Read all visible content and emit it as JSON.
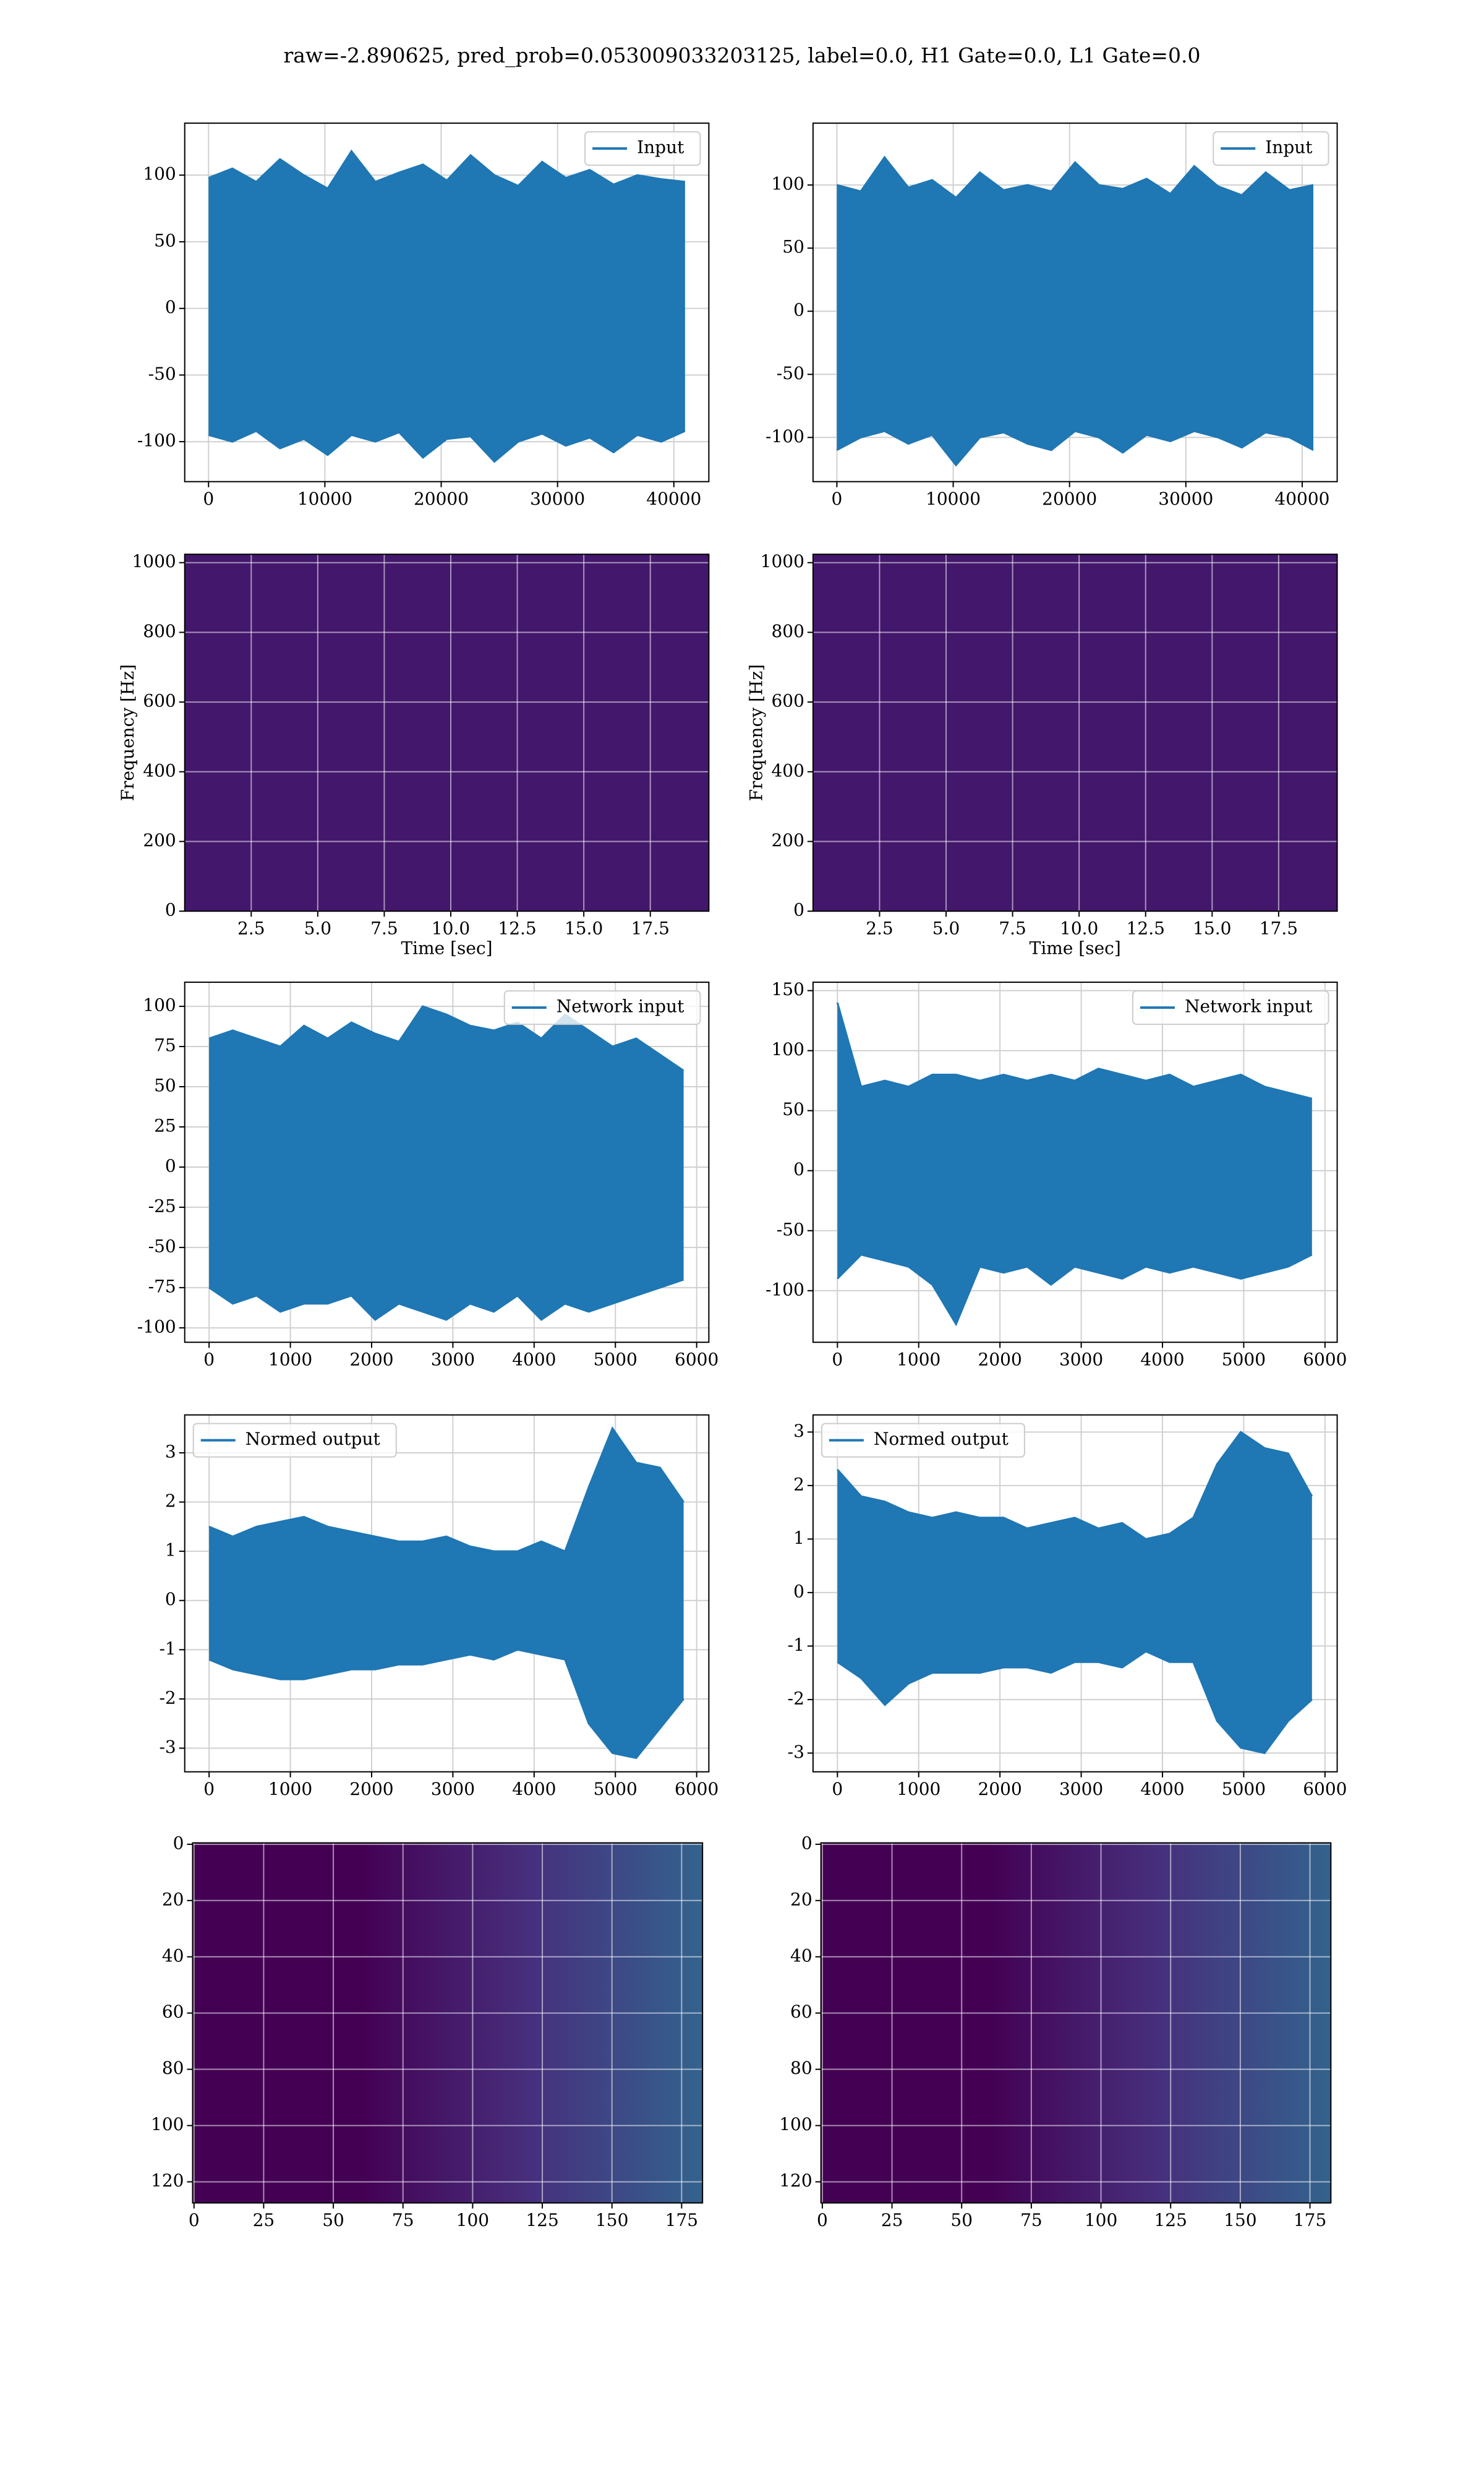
{
  "title": "raw=-2.890625, pred_prob=0.053009033203125, label=0.0, H1 Gate=0.0, L1 Gate=0.0",
  "chart_data": [
    {
      "type": "line",
      "legend": "upper right",
      "grid": true,
      "xlim": [
        -2048,
        43008
      ],
      "ylim": [
        -130,
        139
      ],
      "xticks": [
        0,
        10000,
        20000,
        30000,
        40000
      ],
      "yticks": [
        -100,
        -50,
        0,
        50,
        100
      ],
      "x": [
        0,
        2048,
        4096,
        6144,
        8192,
        10240,
        12288,
        14336,
        16384,
        18432,
        20480,
        22528,
        24576,
        26624,
        28672,
        30720,
        32768,
        34816,
        36864,
        38912,
        40960
      ],
      "series": [
        {
          "name": "Input",
          "color": "#1f77b4",
          "values": [
            98,
            105,
            95,
            112,
            100,
            90,
            118,
            95,
            102,
            108,
            96,
            115,
            100,
            92,
            110,
            98,
            104,
            93,
            100,
            97,
            95
          ],
          "low": [
            -95,
            -100,
            -92,
            -105,
            -98,
            -110,
            -95,
            -100,
            -93,
            -112,
            -98,
            -96,
            -115,
            -100,
            -94,
            -103,
            -97,
            -108,
            -95,
            -100,
            -92
          ]
        }
      ]
    },
    {
      "type": "line",
      "legend": "upper right",
      "grid": true,
      "xlim": [
        -2048,
        43008
      ],
      "ylim": [
        -135,
        149
      ],
      "xticks": [
        0,
        10000,
        20000,
        30000,
        40000
      ],
      "yticks": [
        -100,
        -50,
        0,
        50,
        100
      ],
      "x": [
        0,
        2048,
        4096,
        6144,
        8192,
        10240,
        12288,
        14336,
        16384,
        18432,
        20480,
        22528,
        24576,
        26624,
        28672,
        30720,
        32768,
        34816,
        36864,
        38912,
        40960
      ],
      "series": [
        {
          "name": "Input",
          "color": "#1f77b4",
          "values": [
            100,
            95,
            122,
            98,
            104,
            90,
            110,
            96,
            100,
            95,
            118,
            100,
            97,
            105,
            93,
            115,
            99,
            92,
            110,
            96,
            100
          ],
          "low": [
            -110,
            -100,
            -95,
            -105,
            -98,
            -122,
            -100,
            -96,
            -105,
            -110,
            -95,
            -100,
            -112,
            -98,
            -103,
            -95,
            -100,
            -108,
            -96,
            -100,
            -110
          ]
        }
      ]
    },
    {
      "type": "spectrogram",
      "grid": true,
      "color": "#43176c",
      "xlabel": "Time [sec]",
      "ylabel": "Frequency [Hz]",
      "xlim": [
        0,
        19.7
      ],
      "ylim": [
        0,
        1024
      ],
      "xticks": [
        2.5,
        {
          "value": 5,
          "label": "5.0"
        },
        7.5,
        {
          "value": 10,
          "label": "10.0"
        },
        12.5,
        {
          "value": 15,
          "label": "15.0"
        },
        17.5
      ],
      "yticks": [
        0,
        200,
        400,
        600,
        800,
        1000
      ]
    },
    {
      "type": "spectrogram",
      "grid": true,
      "color": "#43176c",
      "xlabel": "Time [sec]",
      "ylabel": "Frequency [Hz]",
      "xlim": [
        0,
        19.7
      ],
      "ylim": [
        0,
        1024
      ],
      "xticks": [
        2.5,
        {
          "value": 5,
          "label": "5.0"
        },
        7.5,
        {
          "value": 10,
          "label": "10.0"
        },
        12.5,
        {
          "value": 15,
          "label": "15.0"
        },
        17.5
      ],
      "yticks": [
        0,
        200,
        400,
        600,
        800,
        1000
      ]
    },
    {
      "type": "line",
      "legend": "upper right",
      "grid": true,
      "xlim": [
        -300,
        6150
      ],
      "ylim": [
        -109,
        115
      ],
      "xticks": [
        0,
        1000,
        2000,
        3000,
        4000,
        5000,
        6000
      ],
      "yticks": [
        -100,
        -75,
        -50,
        -25,
        0,
        25,
        50,
        75,
        100
      ],
      "x": [
        0,
        292,
        584,
        876,
        1168,
        1460,
        1752,
        2044,
        2336,
        2628,
        2920,
        3212,
        3504,
        3796,
        4088,
        4380,
        4672,
        4964,
        5256,
        5548,
        5840
      ],
      "series": [
        {
          "name": "Network input",
          "color": "#1f77b4",
          "values": [
            80,
            85,
            80,
            75,
            88,
            80,
            90,
            83,
            78,
            100,
            95,
            88,
            85,
            90,
            80,
            95,
            85,
            75,
            80,
            70,
            60
          ],
          "low": [
            -75,
            -85,
            -80,
            -90,
            -85,
            -85,
            -80,
            -95,
            -85,
            -90,
            -95,
            -85,
            -90,
            -80,
            -95,
            -85,
            -90,
            -85,
            -80,
            -75,
            -70
          ]
        }
      ]
    },
    {
      "type": "line",
      "legend": "upper right",
      "grid": true,
      "xlim": [
        -300,
        6150
      ],
      "ylim": [
        -143,
        157
      ],
      "xticks": [
        0,
        1000,
        2000,
        3000,
        4000,
        5000,
        6000
      ],
      "yticks": [
        -100,
        -50,
        0,
        50,
        100,
        150
      ],
      "x": [
        0,
        292,
        584,
        876,
        1168,
        1460,
        1752,
        2044,
        2336,
        2628,
        2920,
        3212,
        3504,
        3796,
        4088,
        4380,
        4672,
        4964,
        5256,
        5548,
        5840
      ],
      "series": [
        {
          "name": "Network input",
          "color": "#1f77b4",
          "values": [
            140,
            70,
            75,
            70,
            80,
            80,
            75,
            80,
            75,
            80,
            75,
            85,
            80,
            75,
            80,
            70,
            75,
            80,
            70,
            65,
            60
          ],
          "low": [
            -90,
            -70,
            -75,
            -80,
            -95,
            -128,
            -80,
            -85,
            -80,
            -95,
            -80,
            -85,
            -90,
            -80,
            -85,
            -80,
            -85,
            -90,
            -85,
            -80,
            -70
          ]
        }
      ]
    },
    {
      "type": "line",
      "legend": "upper left",
      "grid": true,
      "xlim": [
        -300,
        6150
      ],
      "ylim": [
        -3.48,
        3.77
      ],
      "xticks": [
        0,
        1000,
        2000,
        3000,
        4000,
        5000,
        6000
      ],
      "yticks": [
        -3,
        -2,
        -1,
        0,
        1,
        2,
        3
      ],
      "x": [
        0,
        292,
        584,
        876,
        1168,
        1460,
        1752,
        2044,
        2336,
        2628,
        2920,
        3212,
        3504,
        3796,
        4088,
        4380,
        4672,
        4964,
        5256,
        5548,
        5840
      ],
      "series": [
        {
          "name": "Normed output",
          "color": "#1f77b4",
          "values": [
            1.5,
            1.3,
            1.5,
            1.6,
            1.7,
            1.5,
            1.4,
            1.3,
            1.2,
            1.2,
            1.3,
            1.1,
            1.0,
            1.0,
            1.2,
            1.0,
            2.3,
            3.5,
            2.8,
            2.7,
            2.0
          ],
          "low": [
            -1.2,
            -1.4,
            -1.5,
            -1.6,
            -1.6,
            -1.5,
            -1.4,
            -1.4,
            -1.3,
            -1.3,
            -1.2,
            -1.1,
            -1.2,
            -1.0,
            -1.1,
            -1.2,
            -2.5,
            -3.1,
            -3.2,
            -2.6,
            -2.0
          ]
        }
      ]
    },
    {
      "type": "line",
      "legend": "upper left",
      "grid": true,
      "xlim": [
        -300,
        6150
      ],
      "ylim": [
        -3.35,
        3.32
      ],
      "xticks": [
        0,
        1000,
        2000,
        3000,
        4000,
        5000,
        6000
      ],
      "yticks": [
        -3,
        -2,
        -1,
        0,
        1,
        2,
        3
      ],
      "x": [
        0,
        292,
        584,
        876,
        1168,
        1460,
        1752,
        2044,
        2336,
        2628,
        2920,
        3212,
        3504,
        3796,
        4088,
        4380,
        4672,
        4964,
        5256,
        5548,
        5840
      ],
      "series": [
        {
          "name": "Normed output",
          "color": "#1f77b4",
          "values": [
            2.3,
            1.8,
            1.7,
            1.5,
            1.4,
            1.5,
            1.4,
            1.4,
            1.2,
            1.3,
            1.4,
            1.2,
            1.3,
            1.0,
            1.1,
            1.4,
            2.4,
            3.0,
            2.7,
            2.6,
            1.8
          ],
          "low": [
            -1.3,
            -1.6,
            -2.1,
            -1.7,
            -1.5,
            -1.5,
            -1.5,
            -1.4,
            -1.4,
            -1.5,
            -1.3,
            -1.3,
            -1.4,
            -1.1,
            -1.3,
            -1.3,
            -2.4,
            -2.9,
            -3.0,
            -2.4,
            -2.0
          ]
        }
      ]
    },
    {
      "type": "heatmap",
      "grid": true,
      "colors": [
        "#440154",
        "#440154",
        "#46307d",
        "#33638d"
      ],
      "xlim": [
        -0.5,
        182.5
      ],
      "ylim": [
        127.5,
        -0.5
      ],
      "xticks": [
        0,
        25,
        50,
        75,
        100,
        125,
        150,
        175
      ],
      "yticks": [
        0,
        20,
        40,
        60,
        80,
        100,
        120
      ]
    },
    {
      "type": "heatmap",
      "grid": true,
      "colors": [
        "#440154",
        "#440154",
        "#46307d",
        "#33638d"
      ],
      "xlim": [
        -0.5,
        182.5
      ],
      "ylim": [
        127.5,
        -0.5
      ],
      "xticks": [
        0,
        25,
        50,
        75,
        100,
        125,
        150,
        175
      ],
      "yticks": [
        0,
        20,
        40,
        60,
        80,
        100,
        120
      ]
    }
  ]
}
